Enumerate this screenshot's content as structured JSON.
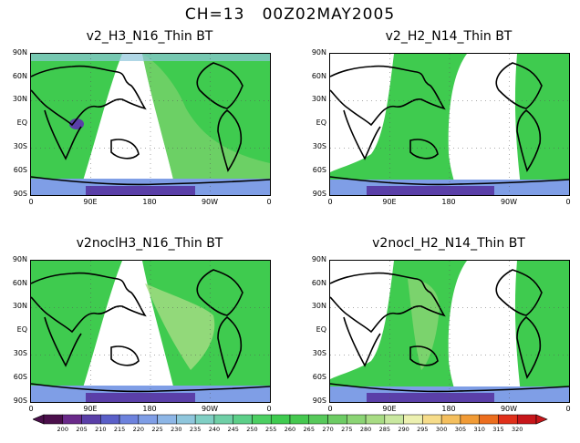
{
  "title": "CH=13   00Z02MAY2005",
  "panels": [
    {
      "title": "v2_H3_N16_Thin BT"
    },
    {
      "title": "v2_H2_N14_Thin BT"
    },
    {
      "title": "v2noclH3_N16_Thin BT"
    },
    {
      "title": "v2nocl_H2_N14_Thin BT"
    }
  ],
  "lat_ticks": [
    "90N",
    "60N",
    "30N",
    "EQ",
    "30S",
    "60S",
    "90S"
  ],
  "lon_ticks": [
    "0",
    "90E",
    "180",
    "90W",
    "0"
  ],
  "colorbar": {
    "labels": [
      "200",
      "205",
      "210",
      "215",
      "220",
      "225",
      "230",
      "235",
      "240",
      "245",
      "250",
      "255",
      "260",
      "265",
      "270",
      "275",
      "280",
      "285",
      "290",
      "295",
      "300",
      "305",
      "310",
      "315",
      "320"
    ],
    "colors": [
      "#4b0f4b",
      "#6a2a8a",
      "#5a3fa8",
      "#5a5fc8",
      "#6d82dd",
      "#7f9ee6",
      "#8db6e6",
      "#8fc6dc",
      "#80cfc4",
      "#6fcfa6",
      "#5ccf88",
      "#4ccf62",
      "#3fcb4f",
      "#45c84f",
      "#57c95a",
      "#6dcc64",
      "#8bd474",
      "#a8dc84",
      "#c9e8a0",
      "#ecf0b0",
      "#f6dc8a",
      "#f4bf5e",
      "#f19b36",
      "#ec6e1e",
      "#e0301a",
      "#c7161a"
    ]
  },
  "colors": {
    "land_outline": "#000000",
    "field_green": "#3fcb4f",
    "field_light": "#8bd474",
    "field_blue": "#7f9ee6",
    "field_purple": "#5a3fa8"
  }
}
